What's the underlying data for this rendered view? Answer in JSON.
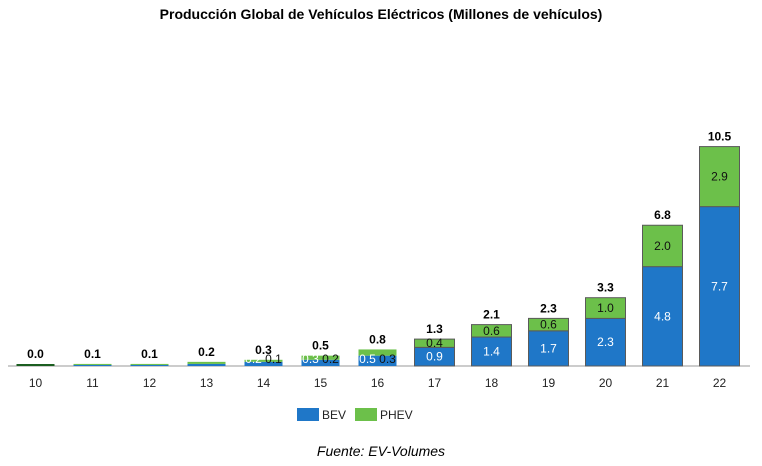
{
  "chart_data": {
    "type": "bar",
    "stacked": true,
    "title": "Producción Global de Vehículos Eléctricos (Millones de vehículos)",
    "source": "Fuente: EV-Volumes",
    "categories": [
      "10",
      "11",
      "12",
      "13",
      "14",
      "15",
      "16",
      "17",
      "18",
      "19",
      "20",
      "21",
      "22"
    ],
    "totals": [
      "0.0",
      "0.1",
      "0.1",
      "0.2",
      "0.3",
      "0.5",
      "0.8",
      "1.3",
      "2.1",
      "2.3",
      "3.3",
      "6.8",
      "10.5"
    ],
    "series": [
      {
        "name": "BEV",
        "color": "#1f77c8",
        "values": [
          0,
          0.05,
          0.05,
          0.1,
          0.2,
          0.3,
          0.5,
          0.9,
          1.4,
          1.7,
          2.3,
          4.8,
          7.7
        ],
        "labels": [
          "",
          "",
          "",
          "",
          "0.2",
          "0.3",
          "0.5",
          "0.9",
          "1.4",
          "1.7",
          "2.3",
          "4.8",
          "7.7"
        ]
      },
      {
        "name": "PHEV",
        "color": "#6cc04a",
        "values": [
          0,
          0.05,
          0.05,
          0.1,
          0.1,
          0.2,
          0.3,
          0.4,
          0.6,
          0.6,
          1.0,
          2.0,
          2.9
        ],
        "labels": [
          "",
          "",
          "",
          "",
          "0.1",
          "0.2",
          "0.3",
          "0.4",
          "0.6",
          "0.6",
          "1.0",
          "2.0",
          "2.9"
        ]
      }
    ],
    "legend_position": "bottom-center",
    "grid": false
  }
}
